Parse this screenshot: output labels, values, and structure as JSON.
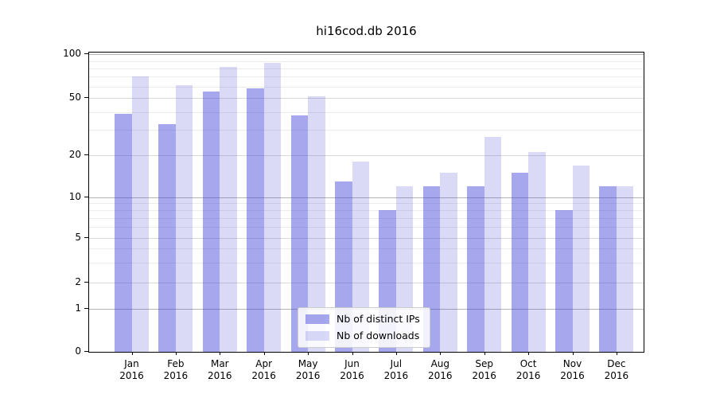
{
  "title": "hi16cod.db 2016",
  "chart_data": {
    "type": "bar",
    "title": "hi16cod.db 2016",
    "categories": [
      "Jan 2016",
      "Feb 2016",
      "Mar 2016",
      "Apr 2016",
      "May 2016",
      "Jun 2016",
      "Jul 2016",
      "Aug 2016",
      "Sep 2016",
      "Oct 2016",
      "Nov 2016",
      "Dec 2016"
    ],
    "series": [
      {
        "name": "Nb of distinct IPs",
        "color": "rgba(60,60,215,0.45)",
        "values": [
          39,
          33,
          55,
          58,
          38,
          13,
          8,
          12,
          12,
          15,
          8,
          12
        ]
      },
      {
        "name": "Nb of downloads",
        "color": "rgba(60,60,215,0.19)",
        "values": [
          70,
          61,
          82,
          87,
          51,
          18,
          12,
          15,
          27,
          21,
          17,
          12
        ]
      }
    ],
    "y_ticks": [
      100,
      50,
      20,
      10,
      5,
      2,
      1,
      0
    ],
    "ylim": [
      0,
      100
    ],
    "y_scale": "log-like with 0 baseline (symlog)",
    "grid": true,
    "legend_position": "lower center",
    "colors": {
      "bar_dark": "#a7a7ed",
      "bar_light": "#dadaf7",
      "grid_major": "#b4b4b4",
      "grid_sub": "#d9d9d9",
      "grid_minor": "#ececec"
    }
  }
}
